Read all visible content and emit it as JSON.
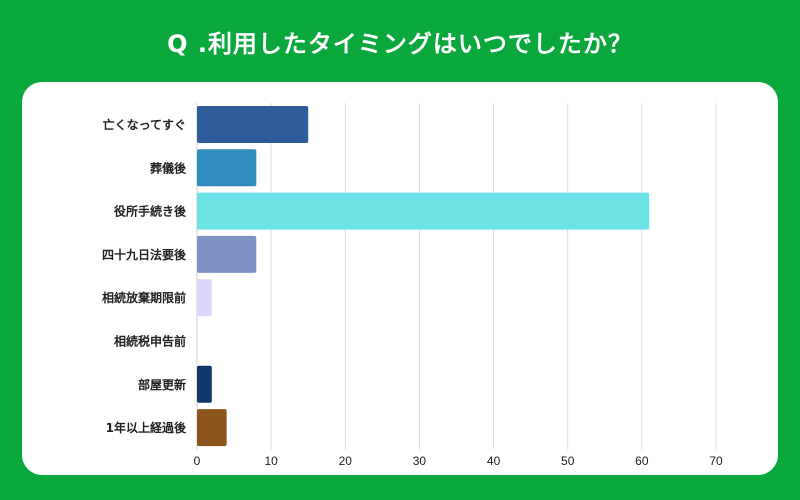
{
  "title": "Q .利用したタイミングはいつでしたか？",
  "chart_data": {
    "type": "bar",
    "orientation": "horizontal",
    "title": "Q .利用したタイミングはいつでしたか？",
    "categories": [
      "亡くなってすぐ",
      "葬儀後",
      "役所手続き後",
      "四十九日法要後",
      "相続放棄期限前",
      "相続税申告前",
      "部屋更新",
      "1年以上経過後"
    ],
    "values": [
      15,
      8,
      61,
      8,
      2,
      0,
      2,
      4
    ],
    "colors": [
      "#2e5c99",
      "#2f8cbc",
      "#6be3e6",
      "#7f93c6",
      "#dcd8fb",
      "#cccccc",
      "#0f3768",
      "#8a561b"
    ],
    "xlim": [
      0,
      70
    ],
    "xticks": [
      "0",
      "10",
      "20",
      "30",
      "40",
      "50",
      "60",
      "70"
    ],
    "grid": true,
    "legend": "none"
  }
}
